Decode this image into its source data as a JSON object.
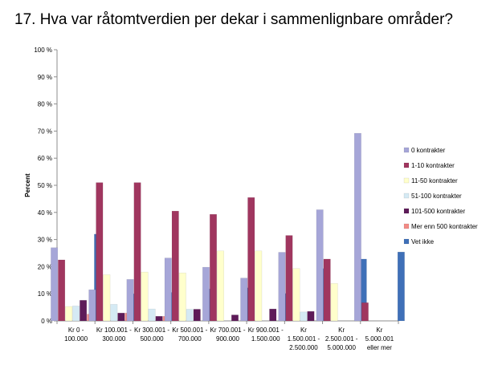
{
  "page": {
    "title": "17. Hva var råtomtverdien per dekar i sammenlignbare områder?"
  },
  "chart_data": {
    "type": "bar",
    "title": "17. Hva var råtomtverdien per dekar i sammenlignbare områder?",
    "ylabel": "Percent",
    "xlabel": "",
    "ylim": [
      0,
      100
    ],
    "yticks": [
      "0 %",
      "10 %",
      "20 %",
      "30 %",
      "40 %",
      "50 %",
      "60 %",
      "70 %",
      "80 %",
      "90 %",
      "100 %"
    ],
    "grid": false,
    "legend_position": "right",
    "categories": [
      [
        "Kr 0 -",
        "100.000"
      ],
      [
        "Kr 100.001 -",
        "300.000"
      ],
      [
        "Kr 300.001 -",
        "500.000"
      ],
      [
        "Kr 500.001 -",
        "700.000"
      ],
      [
        "Kr 700.001 -",
        "900.000"
      ],
      [
        "Kr 900.001 -",
        "1.500.000"
      ],
      [
        "Kr",
        "1.500.001 -",
        "2.500.000"
      ],
      [
        "Kr",
        "2.500.001 -",
        "5.000.000"
      ],
      [
        "Kr",
        "5.000.001",
        "eller mer"
      ]
    ],
    "series": [
      {
        "name": "0 kontrakter",
        "color": "#a6a6d8",
        "values": [
          27,
          11.5,
          15.3,
          23.2,
          19.8,
          15.8,
          25.3,
          41,
          69.2
        ]
      },
      {
        "name": "1-10 kontrakter",
        "color": "#a0365f",
        "values": [
          22.5,
          51,
          51,
          40.5,
          39.3,
          45.5,
          31.5,
          22.8,
          6.7
        ]
      },
      {
        "name": "11-50 kontrakter",
        "color": "#ffffcc",
        "values": [
          5.3,
          17,
          18,
          17.7,
          25.8,
          25.8,
          19.3,
          13.8,
          0
        ]
      },
      {
        "name": "51-100 kontrakter",
        "color": "#d5eaf4",
        "values": [
          5.5,
          6.1,
          4.4,
          4.3,
          0,
          0,
          3.3,
          0,
          0
        ]
      },
      {
        "name": "101-500 kontrakter",
        "color": "#5e1b59",
        "values": [
          7.6,
          2.9,
          1.7,
          4.3,
          2.2,
          4.4,
          3.5,
          0,
          0
        ]
      },
      {
        "name": "Mer enn 500 kontrakter",
        "color": "#f28b86",
        "values": [
          2.5,
          2.9,
          1.7,
          0,
          0,
          0,
          0,
          0,
          0
        ]
      },
      {
        "name": "Vet ikke",
        "color": "#3f70b8",
        "values": [
          32,
          10,
          10.5,
          11.8,
          12.2,
          10.1,
          19.3,
          22.8,
          25.4
        ]
      }
    ]
  }
}
